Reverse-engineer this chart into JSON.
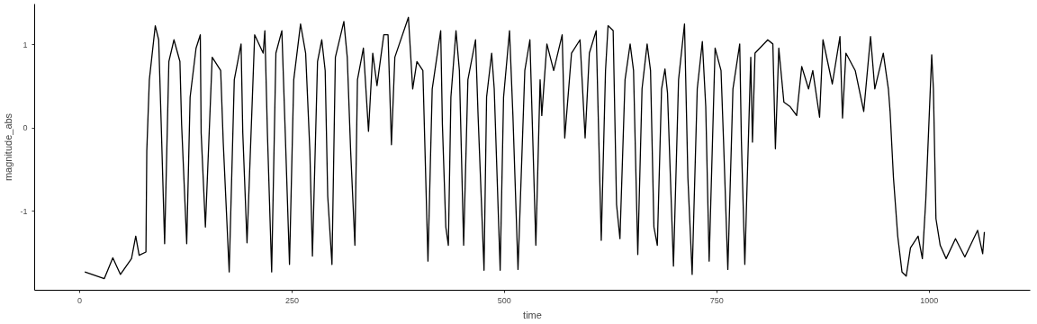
{
  "chart_data": {
    "type": "line",
    "xlabel": "time",
    "ylabel": "magnitude_abs",
    "xlim": [
      -53,
      1119
    ],
    "ylim": [
      -1.95,
      1.49
    ],
    "xticks": [
      0,
      250,
      500,
      750,
      1000
    ],
    "yticks": [
      -1,
      0,
      1
    ],
    "grid": false,
    "line_style": "solid",
    "marker": "none",
    "series": [
      {
        "color": "#000000",
        "x": [
          6,
          29,
          39,
          48,
          61,
          66,
          70,
          78,
          79,
          82,
          89,
          93,
          96,
          100,
          105,
          111,
          118,
          120,
          126,
          130,
          137,
          142,
          143,
          148,
          156,
          166,
          169,
          176,
          182,
          190,
          192,
          197,
          206,
          216,
          218,
          221,
          226,
          231,
          238,
          242,
          247,
          252,
          260,
          266,
          271,
          274,
          280,
          285,
          289,
          292,
          297,
          301,
          311,
          315,
          319,
          324,
          327,
          334,
          340,
          345,
          350,
          358,
          363,
          367,
          371,
          387,
          392,
          397,
          404,
          410,
          415,
          425,
          427,
          431,
          434,
          437,
          443,
          447,
          452,
          457,
          466,
          469,
          476,
          479,
          485,
          488,
          495,
          499,
          506,
          510,
          516,
          524,
          530,
          537,
          542,
          544,
          550,
          558,
          568,
          571,
          579,
          589,
          595,
          600,
          608,
          614,
          619,
          622,
          628,
          632,
          636,
          642,
          648,
          652,
          657,
          662,
          668,
          672,
          676,
          680,
          685,
          689,
          692,
          699,
          705,
          712,
          716,
          721,
          727,
          733,
          737,
          741,
          748,
          755,
          758,
          763,
          769,
          777,
          779,
          783,
          790,
          792,
          795,
          810,
          816,
          819,
          823,
          829,
          836,
          844,
          850,
          858,
          863,
          871,
          875,
          886,
          895,
          898,
          902,
          913,
          923,
          931,
          936,
          946,
          952,
          954,
          958,
          963,
          968,
          973,
          978,
          987,
          992,
          996,
          1003,
          1005,
          1008,
          1013,
          1020,
          1031,
          1042,
          1057,
          1063,
          1065
        ],
        "values": [
          -1.73,
          -1.81,
          -1.56,
          -1.76,
          -1.57,
          -1.3,
          -1.53,
          -1.49,
          -0.28,
          0.58,
          1.23,
          1.06,
          0.04,
          -1.39,
          0.8,
          1.06,
          0.8,
          0.04,
          -1.39,
          0.37,
          0.96,
          1.12,
          -0.06,
          -1.19,
          0.85,
          0.69,
          -0.17,
          -1.73,
          0.58,
          1.01,
          -0.06,
          -1.38,
          1.12,
          0.9,
          1.17,
          -0.06,
          -1.73,
          0.9,
          1.17,
          -0.06,
          -1.64,
          0.58,
          1.25,
          0.9,
          -0.28,
          -1.54,
          0.8,
          1.06,
          0.69,
          -0.82,
          -1.64,
          0.85,
          1.28,
          0.85,
          -0.28,
          -1.41,
          0.58,
          0.96,
          -0.04,
          0.9,
          0.51,
          1.12,
          1.12,
          -0.2,
          0.85,
          1.33,
          0.47,
          0.8,
          0.69,
          -1.6,
          0.47,
          1.17,
          0.04,
          -1.19,
          -1.41,
          0.37,
          1.17,
          0.69,
          -1.41,
          0.58,
          1.06,
          0.15,
          -1.71,
          0.37,
          0.9,
          0.47,
          -1.71,
          0.37,
          1.17,
          0.15,
          -1.7,
          0.69,
          1.06,
          -1.41,
          0.58,
          0.15,
          1.01,
          0.69,
          1.12,
          -0.12,
          0.9,
          1.06,
          -0.12,
          0.9,
          1.17,
          -1.35,
          0.69,
          1.23,
          1.17,
          -0.92,
          -1.33,
          0.58,
          1.01,
          0.69,
          -1.52,
          0.47,
          1.01,
          0.69,
          -1.19,
          -1.41,
          0.47,
          0.71,
          0.42,
          -1.66,
          0.58,
          1.25,
          -0.6,
          -1.76,
          0.47,
          1.04,
          0.26,
          -1.6,
          0.96,
          0.69,
          -0.17,
          -1.7,
          0.47,
          1.01,
          -0.17,
          -1.64,
          0.85,
          -0.17,
          0.9,
          1.06,
          1.01,
          -0.25,
          0.96,
          0.31,
          0.26,
          0.15,
          0.74,
          0.47,
          0.69,
          0.13,
          1.06,
          0.53,
          1.1,
          0.12,
          0.9,
          0.69,
          0.2,
          1.1,
          0.47,
          0.9,
          0.47,
          0.2,
          -0.6,
          -1.3,
          -1.73,
          -1.78,
          -1.44,
          -1.3,
          -1.57,
          -0.87,
          0.88,
          0.47,
          -1.09,
          -1.41,
          -1.57,
          -1.33,
          -1.55,
          -1.23,
          -1.51,
          -1.25
        ]
      }
    ]
  }
}
